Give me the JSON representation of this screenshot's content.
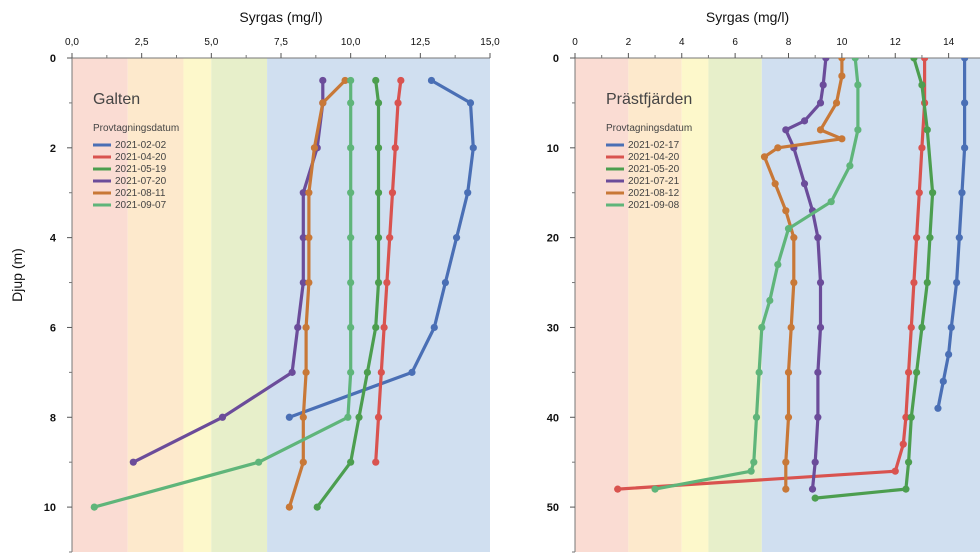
{
  "shared": {
    "ylabel": "Djup (m)",
    "xlabel": "Syrgas (mg/l)"
  },
  "chart_data": [
    {
      "type": "line",
      "title": "Galten",
      "xlabel": "Syrgas (mg/l)",
      "ylabel": "Djup (m)",
      "xlim": [
        0,
        15
      ],
      "ylim": [
        0,
        11
      ],
      "y_inverted": true,
      "x_axis_position": "top",
      "xticks": [
        0,
        2.5,
        5,
        7.5,
        10,
        12.5,
        15
      ],
      "xtick_labels": [
        "0,0",
        "2,5",
        "5,0",
        "7,5",
        "10,0",
        "12,5",
        "15,0"
      ],
      "yticks": [
        0,
        2,
        4,
        6,
        8,
        10
      ],
      "ytick_labels": [
        "0",
        "2",
        "4",
        "6",
        "8",
        "10"
      ],
      "legend_title": "Provtagningsdatum",
      "legend_position": "top-left",
      "bands": [
        {
          "from": 0,
          "to": 2,
          "color": "#fadcd3"
        },
        {
          "from": 2,
          "to": 4,
          "color": "#fde9cc"
        },
        {
          "from": 4,
          "to": 5,
          "color": "#fdf8cb"
        },
        {
          "from": 5,
          "to": 7,
          "color": "#e7efca"
        },
        {
          "from": 7,
          "to": 15,
          "color": "#d0dff0"
        }
      ],
      "series": [
        {
          "name": "2021-02-02",
          "color": "#4a6fb5",
          "points": [
            [
              12.9,
              0.5
            ],
            [
              14.3,
              1
            ],
            [
              14.4,
              2
            ],
            [
              14.2,
              3
            ],
            [
              13.8,
              4
            ],
            [
              13.4,
              5
            ],
            [
              13.0,
              6
            ],
            [
              12.2,
              7
            ],
            [
              7.8,
              8
            ]
          ]
        },
        {
          "name": "2021-04-20",
          "color": "#d9534f",
          "points": [
            [
              11.8,
              0.5
            ],
            [
              11.7,
              1
            ],
            [
              11.6,
              2
            ],
            [
              11.5,
              3
            ],
            [
              11.4,
              4
            ],
            [
              11.3,
              5
            ],
            [
              11.2,
              6
            ],
            [
              11.1,
              7
            ],
            [
              11.0,
              8
            ],
            [
              10.9,
              9
            ]
          ]
        },
        {
          "name": "2021-05-19",
          "color": "#4c9e4f",
          "points": [
            [
              10.9,
              0.5
            ],
            [
              11.0,
              1
            ],
            [
              11.0,
              2
            ],
            [
              11.0,
              3
            ],
            [
              11.0,
              4
            ],
            [
              11.0,
              5
            ],
            [
              10.9,
              6
            ],
            [
              10.6,
              7
            ],
            [
              10.3,
              8
            ],
            [
              10.0,
              9
            ],
            [
              8.8,
              10
            ]
          ]
        },
        {
          "name": "2021-07-20",
          "color": "#6b4c9a",
          "points": [
            [
              9.0,
              0.5
            ],
            [
              9.0,
              1
            ],
            [
              8.8,
              2
            ],
            [
              8.3,
              3
            ],
            [
              8.3,
              4
            ],
            [
              8.3,
              5
            ],
            [
              8.1,
              6
            ],
            [
              7.9,
              7
            ],
            [
              5.4,
              8
            ],
            [
              2.2,
              9
            ]
          ]
        },
        {
          "name": "2021-08-11",
          "color": "#c87837",
          "points": [
            [
              9.8,
              0.5
            ],
            [
              9.0,
              1
            ],
            [
              8.7,
              2
            ],
            [
              8.5,
              3
            ],
            [
              8.5,
              4
            ],
            [
              8.5,
              5
            ],
            [
              8.4,
              6
            ],
            [
              8.4,
              7
            ],
            [
              8.3,
              8
            ],
            [
              8.3,
              9
            ],
            [
              7.8,
              10
            ]
          ]
        },
        {
          "name": "2021-09-07",
          "color": "#5fb57a",
          "points": [
            [
              10.0,
              0.5
            ],
            [
              10.0,
              1
            ],
            [
              10.0,
              2
            ],
            [
              10.0,
              3
            ],
            [
              10.0,
              4
            ],
            [
              10.0,
              5
            ],
            [
              10.0,
              6
            ],
            [
              10.0,
              7
            ],
            [
              9.9,
              8
            ],
            [
              6.7,
              9
            ],
            [
              0.8,
              10
            ]
          ]
        }
      ]
    },
    {
      "type": "line",
      "title": "Prästfjärden",
      "xlabel": "Syrgas (mg/l)",
      "ylabel": "",
      "xlim": [
        0,
        16
      ],
      "ylim": [
        0,
        55
      ],
      "y_inverted": true,
      "x_axis_position": "top",
      "xticks": [
        0,
        2,
        4,
        6,
        8,
        10,
        12,
        14
      ],
      "xtick_labels": [
        "0",
        "2",
        "4",
        "6",
        "8",
        "10",
        "12",
        "14"
      ],
      "yticks": [
        0,
        10,
        20,
        30,
        40,
        50
      ],
      "ytick_labels": [
        "0",
        "10",
        "20",
        "30",
        "40",
        "50"
      ],
      "legend_title": "Provtagningsdatum",
      "legend_position": "top-left",
      "bands": [
        {
          "from": 0,
          "to": 2,
          "color": "#fadcd3"
        },
        {
          "from": 2,
          "to": 4,
          "color": "#fde9cc"
        },
        {
          "from": 4,
          "to": 5,
          "color": "#fdf8cb"
        },
        {
          "from": 5,
          "to": 7,
          "color": "#e7efca"
        },
        {
          "from": 7,
          "to": 16,
          "color": "#d0dff0"
        }
      ],
      "series": [
        {
          "name": "2021-02-17",
          "color": "#4a6fb5",
          "points": [
            [
              14.6,
              0
            ],
            [
              14.6,
              5
            ],
            [
              14.6,
              10
            ],
            [
              14.5,
              15
            ],
            [
              14.4,
              20
            ],
            [
              14.3,
              25
            ],
            [
              14.1,
              30
            ],
            [
              14.0,
              33
            ],
            [
              13.8,
              36
            ],
            [
              13.6,
              39
            ]
          ]
        },
        {
          "name": "2021-04-20",
          "color": "#d9534f",
          "points": [
            [
              13.1,
              0
            ],
            [
              13.1,
              5
            ],
            [
              13.0,
              10
            ],
            [
              12.9,
              15
            ],
            [
              12.8,
              20
            ],
            [
              12.7,
              25
            ],
            [
              12.6,
              30
            ],
            [
              12.5,
              35
            ],
            [
              12.4,
              40
            ],
            [
              12.3,
              43
            ],
            [
              12.0,
              46
            ],
            [
              1.6,
              48
            ]
          ]
        },
        {
          "name": "2021-05-20",
          "color": "#4c9e4f",
          "points": [
            [
              12.7,
              0
            ],
            [
              13.0,
              3
            ],
            [
              13.2,
              8
            ],
            [
              13.4,
              15
            ],
            [
              13.3,
              20
            ],
            [
              13.2,
              25
            ],
            [
              13.0,
              30
            ],
            [
              12.8,
              35
            ],
            [
              12.6,
              40
            ],
            [
              12.5,
              45
            ],
            [
              12.4,
              48
            ],
            [
              9.0,
              49
            ]
          ]
        },
        {
          "name": "2021-07-21",
          "color": "#6b4c9a",
          "points": [
            [
              9.4,
              0
            ],
            [
              9.3,
              3
            ],
            [
              9.2,
              5
            ],
            [
              8.6,
              7
            ],
            [
              7.9,
              8
            ],
            [
              8.2,
              10
            ],
            [
              8.6,
              14
            ],
            [
              8.9,
              17
            ],
            [
              9.1,
              20
            ],
            [
              9.2,
              25
            ],
            [
              9.2,
              30
            ],
            [
              9.1,
              35
            ],
            [
              9.1,
              40
            ],
            [
              9.0,
              45
            ],
            [
              8.9,
              48
            ]
          ]
        },
        {
          "name": "2021-08-12",
          "color": "#c87837",
          "points": [
            [
              10.0,
              0
            ],
            [
              10.0,
              2
            ],
            [
              9.8,
              5
            ],
            [
              9.2,
              8
            ],
            [
              10.0,
              9
            ],
            [
              7.6,
              10
            ],
            [
              7.1,
              11
            ],
            [
              7.5,
              14
            ],
            [
              7.9,
              17
            ],
            [
              8.2,
              20
            ],
            [
              8.2,
              25
            ],
            [
              8.1,
              30
            ],
            [
              8.0,
              35
            ],
            [
              8.0,
              40
            ],
            [
              7.9,
              45
            ],
            [
              7.9,
              48
            ]
          ]
        },
        {
          "name": "2021-09-08",
          "color": "#5fb57a",
          "points": [
            [
              10.5,
              0
            ],
            [
              10.6,
              3
            ],
            [
              10.6,
              8
            ],
            [
              10.3,
              12
            ],
            [
              9.6,
              16
            ],
            [
              8.0,
              19
            ],
            [
              7.6,
              23
            ],
            [
              7.3,
              27
            ],
            [
              7.0,
              30
            ],
            [
              6.9,
              35
            ],
            [
              6.8,
              40
            ],
            [
              6.7,
              45
            ],
            [
              6.6,
              46
            ],
            [
              3.0,
              48
            ]
          ]
        }
      ]
    }
  ]
}
